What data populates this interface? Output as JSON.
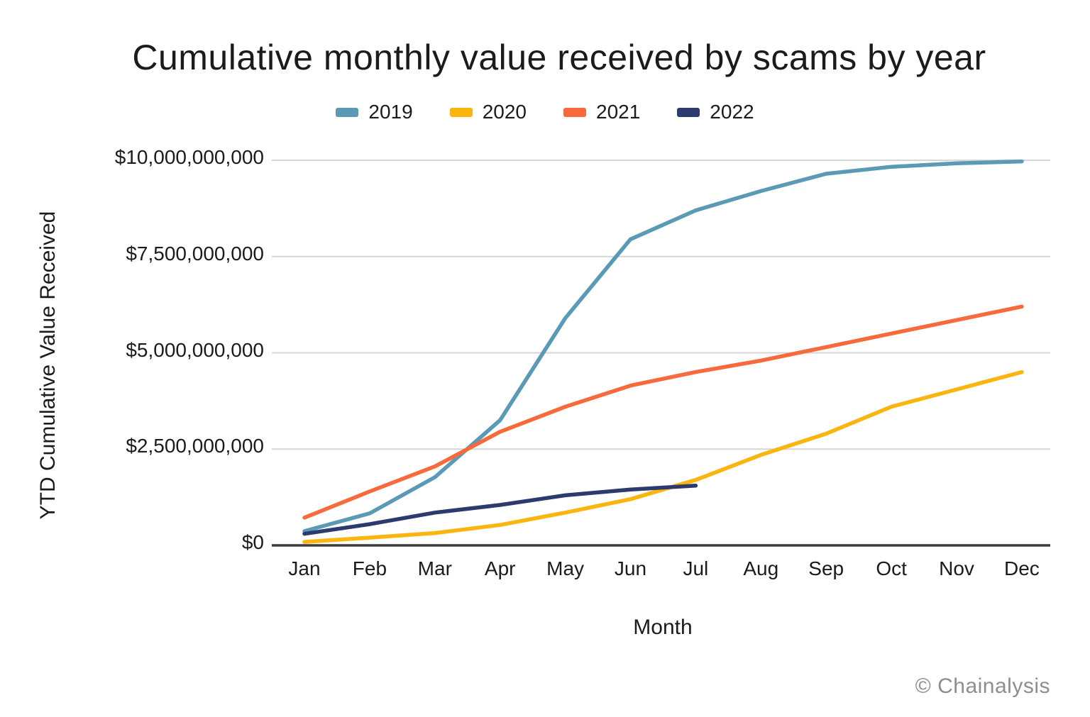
{
  "watermark": "© Chainalysis",
  "chart_data": {
    "type": "line",
    "title": "Cumulative monthly value received by scams by year",
    "xlabel": "Month",
    "ylabel": "YTD Cumulative Value Received",
    "categories": [
      "Jan",
      "Feb",
      "Mar",
      "Apr",
      "May",
      "Jun",
      "Jul",
      "Aug",
      "Sep",
      "Oct",
      "Nov",
      "Dec"
    ],
    "y_tick_labels": [
      "$0",
      "$2,500,000,000",
      "$5,000,000,000",
      "$7,500,000,000",
      "$10,000,000,000"
    ],
    "y_tick_values": [
      0,
      2500000000,
      5000000000,
      7500000000,
      10000000000
    ],
    "ylim": [
      0,
      10000000000
    ],
    "grid": "horizontal-only",
    "legend_position": "top-center",
    "axis_color": "#3a3a3a",
    "gridline_color": "#d6d6d6",
    "text_color": "#1b1b1b",
    "watermark_color": "#8d8d92",
    "series": [
      {
        "name": "2019",
        "color": "#5B9AB6",
        "values": [
          370000000,
          830000000,
          1770000000,
          3250000000,
          5900000000,
          7950000000,
          8700000000,
          9200000000,
          9650000000,
          9830000000,
          9920000000,
          9970000000
        ]
      },
      {
        "name": "2020",
        "color": "#FCB40F",
        "values": [
          90000000,
          200000000,
          320000000,
          530000000,
          850000000,
          1200000000,
          1700000000,
          2350000000,
          2900000000,
          3600000000,
          4050000000,
          4500000000
        ]
      },
      {
        "name": "2021",
        "color": "#F8693C",
        "values": [
          720000000,
          1400000000,
          2050000000,
          2950000000,
          3600000000,
          4150000000,
          4500000000,
          4800000000,
          5150000000,
          5500000000,
          5850000000,
          6200000000
        ]
      },
      {
        "name": "2022",
        "color": "#2C3A6E",
        "values": [
          300000000,
          550000000,
          850000000,
          1050000000,
          1300000000,
          1450000000,
          1550000000
        ]
      }
    ]
  }
}
